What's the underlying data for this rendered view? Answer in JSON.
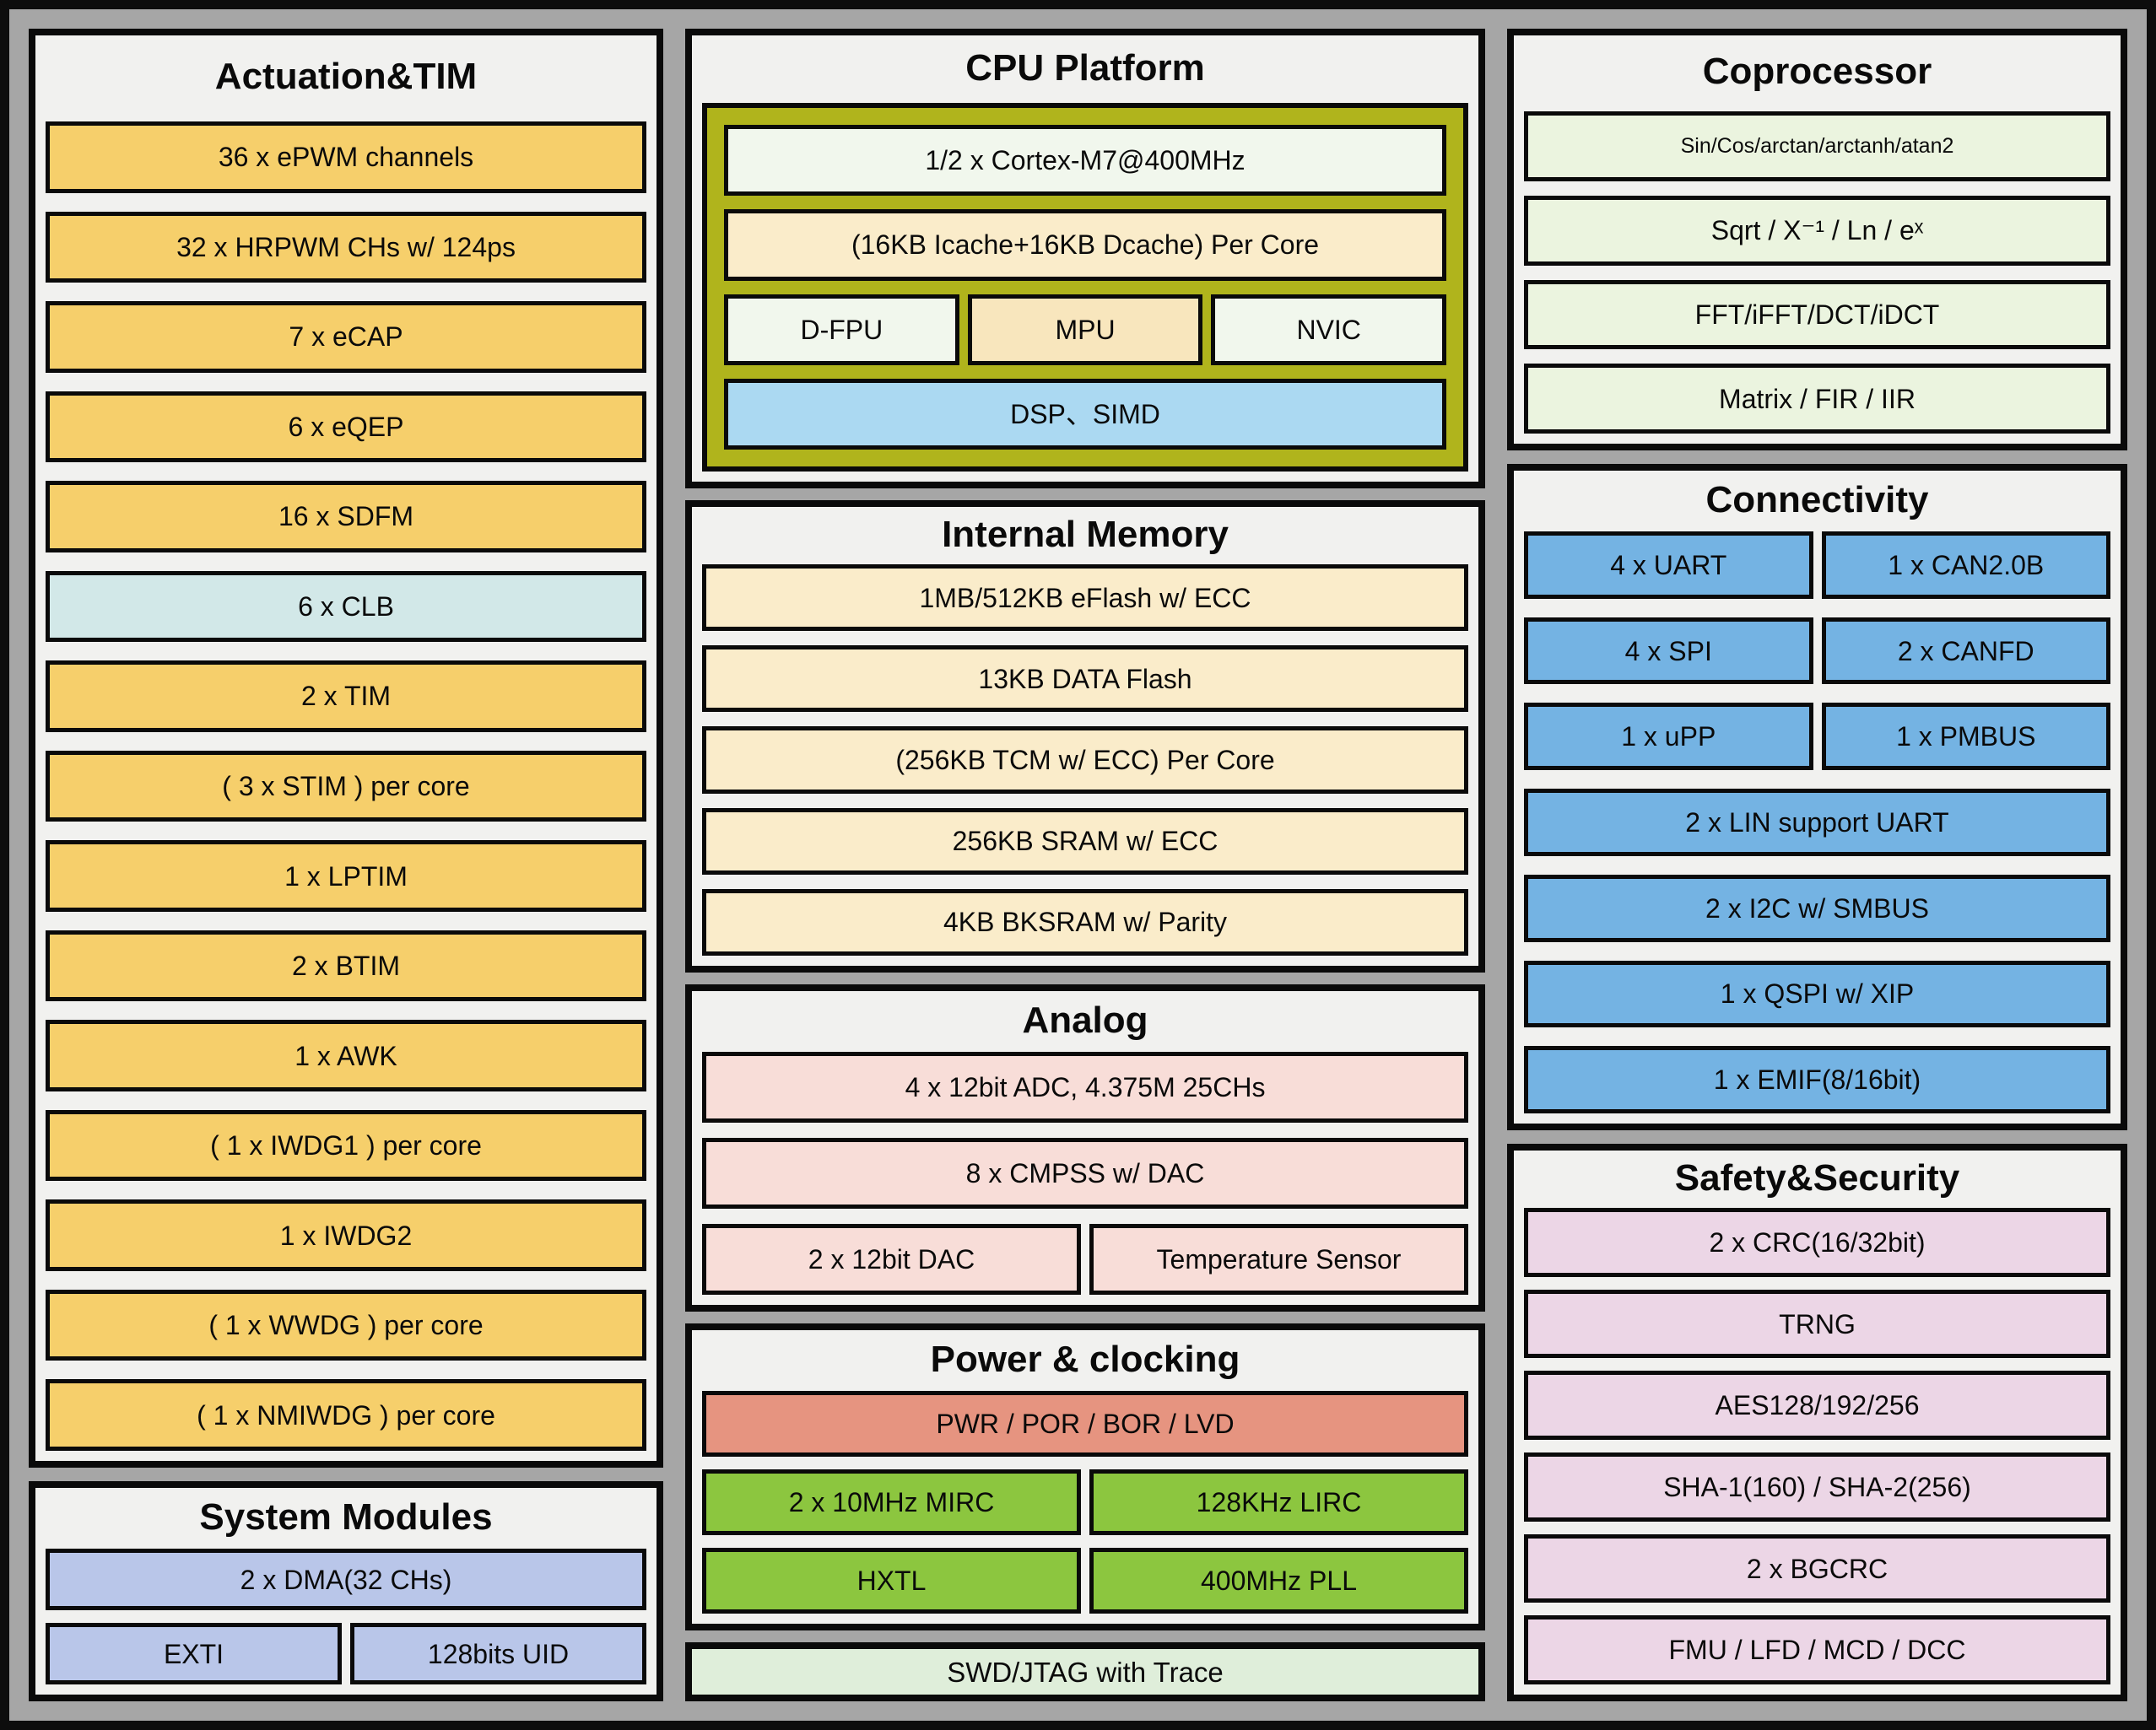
{
  "palette": {
    "frameBlack": "#0d0d0d",
    "outerGray": "#a6a6a6",
    "panelBg": "#f1f1ef",
    "yellow": "#f6cf6b",
    "cyan": "#d2e8e8",
    "periwinkle": "#b9c6e9",
    "olive": "#b0b41c",
    "paleGreen": "#f1f7ed",
    "cream": "#faecca",
    "creamDark": "#f8e6bd",
    "dspBlue": "#abd9f2",
    "pink": "#f8ddd8",
    "salmon": "#e69480",
    "green": "#8cc63f",
    "swdGreen": "#dfeeda",
    "coproGreen": "#ebf4df",
    "connBlue": "#74b3e3",
    "safetyPink": "#ecd6e6"
  },
  "panels": {
    "actuation": {
      "title": "Actuation&TIM",
      "rows": [
        [
          {
            "t": "36 x ePWM channels",
            "c": "yellow"
          }
        ],
        [
          {
            "t": "32 x HRPWM CHs w/ 124ps",
            "c": "yellow"
          }
        ],
        [
          {
            "t": "7 x eCAP",
            "c": "yellow"
          }
        ],
        [
          {
            "t": "6 x eQEP",
            "c": "yellow"
          }
        ],
        [
          {
            "t": "16 x SDFM",
            "c": "yellow"
          }
        ],
        [
          {
            "t": "6 x CLB",
            "c": "cyan"
          }
        ],
        [
          {
            "t": "2 x TIM",
            "c": "yellow"
          }
        ],
        [
          {
            "t": "( 3 x STIM ) per core",
            "c": "yellow"
          }
        ],
        [
          {
            "t": "1 x LPTIM",
            "c": "yellow"
          }
        ],
        [
          {
            "t": "2 x BTIM",
            "c": "yellow"
          }
        ],
        [
          {
            "t": "1 x AWK",
            "c": "yellow"
          }
        ],
        [
          {
            "t": "( 1 x IWDG1 ) per core",
            "c": "yellow"
          }
        ],
        [
          {
            "t": "1 x IWDG2",
            "c": "yellow"
          }
        ],
        [
          {
            "t": "( 1 x WWDG ) per core",
            "c": "yellow"
          }
        ],
        [
          {
            "t": "( 1 x NMIWDG ) per core",
            "c": "yellow"
          }
        ]
      ]
    },
    "system": {
      "title": "System Modules",
      "rows": [
        [
          {
            "t": "2 x DMA(32 CHs)",
            "c": "periwinkle"
          }
        ],
        [
          {
            "t": "EXTI",
            "c": "periwinkle"
          },
          {
            "t": "128bits UID",
            "c": "periwinkle"
          }
        ]
      ]
    },
    "cpu": {
      "title": "CPU Platform",
      "rows": [
        [
          {
            "t": "1/2 x Cortex-M7@400MHz",
            "c": "paleGreen"
          }
        ],
        [
          {
            "t": "(16KB Icache+16KB Dcache) Per Core",
            "c": "cream"
          }
        ],
        [
          {
            "t": "D-FPU",
            "c": "paleGreen"
          },
          {
            "t": "MPU",
            "c": "creamDark"
          },
          {
            "t": "NVIC",
            "c": "paleGreen"
          }
        ],
        [
          {
            "t": "DSP、SIMD",
            "c": "dspBlue"
          }
        ]
      ]
    },
    "memory": {
      "title": "Internal Memory",
      "rows": [
        [
          {
            "t": "1MB/512KB eFlash w/ ECC",
            "c": "cream"
          }
        ],
        [
          {
            "t": "13KB DATA Flash",
            "c": "cream"
          }
        ],
        [
          {
            "t": "(256KB TCM w/ ECC) Per Core",
            "c": "cream"
          }
        ],
        [
          {
            "t": "256KB SRAM w/ ECC",
            "c": "cream"
          }
        ],
        [
          {
            "t": "4KB BKSRAM w/ Parity",
            "c": "cream"
          }
        ]
      ]
    },
    "analog": {
      "title": "Analog",
      "rows": [
        [
          {
            "t": "4 x 12bit ADC, 4.375M 25CHs",
            "c": "pink"
          }
        ],
        [
          {
            "t": "8 x CMPSS w/ DAC",
            "c": "pink"
          }
        ],
        [
          {
            "t": "2 x 12bit DAC",
            "c": "pink"
          },
          {
            "t": "Temperature Sensor",
            "c": "pink"
          }
        ]
      ]
    },
    "power": {
      "title": "Power & clocking",
      "rows": [
        [
          {
            "t": "PWR / POR / BOR / LVD",
            "c": "salmon"
          }
        ],
        [
          {
            "t": "2 x 10MHz MIRC",
            "c": "green"
          },
          {
            "t": "128KHz LIRC",
            "c": "green"
          }
        ],
        [
          {
            "t": "HXTL",
            "c": "green"
          },
          {
            "t": "400MHz PLL",
            "c": "green"
          }
        ]
      ]
    },
    "swd": {
      "rows": [
        [
          {
            "t": "SWD/JTAG with Trace",
            "c": "swdGreen"
          }
        ]
      ]
    },
    "coprocessor": {
      "title": "Coprocessor",
      "rows": [
        [
          {
            "t": "Sin/Cos/arctan/arctanh/atan2",
            "c": "coproGreen"
          }
        ],
        [
          {
            "t": "Sqrt / X⁻¹ / Ln / eˣ",
            "c": "coproGreen"
          }
        ],
        [
          {
            "t": "FFT/iFFT/DCT/iDCT",
            "c": "coproGreen"
          }
        ],
        [
          {
            "t": "Matrix / FIR / IIR",
            "c": "coproGreen"
          }
        ]
      ]
    },
    "connectivity": {
      "title": "Connectivity",
      "rows": [
        [
          {
            "t": "4 x UART",
            "c": "connBlue"
          },
          {
            "t": "1 x CAN2.0B",
            "c": "connBlue"
          }
        ],
        [
          {
            "t": "4 x SPI",
            "c": "connBlue"
          },
          {
            "t": "2 x CANFD",
            "c": "connBlue"
          }
        ],
        [
          {
            "t": "1 x uPP",
            "c": "connBlue"
          },
          {
            "t": "1 x PMBUS",
            "c": "connBlue"
          }
        ],
        [
          {
            "t": "2 x LIN support UART",
            "c": "connBlue"
          }
        ],
        [
          {
            "t": "2 x I2C w/ SMBUS",
            "c": "connBlue"
          }
        ],
        [
          {
            "t": "1 x QSPI w/ XIP",
            "c": "connBlue"
          }
        ],
        [
          {
            "t": "1 x EMIF(8/16bit)",
            "c": "connBlue"
          }
        ]
      ]
    },
    "safety": {
      "title": "Safety&Security",
      "rows": [
        [
          {
            "t": "2 x CRC(16/32bit)",
            "c": "safetyPink"
          }
        ],
        [
          {
            "t": "TRNG",
            "c": "safetyPink"
          }
        ],
        [
          {
            "t": "AES128/192/256",
            "c": "safetyPink"
          }
        ],
        [
          {
            "t": "SHA-1(160) / SHA-2(256)",
            "c": "safetyPink"
          }
        ],
        [
          {
            "t": "2 x BGCRC",
            "c": "safetyPink"
          }
        ],
        [
          {
            "t": "FMU / LFD / MCD / DCC",
            "c": "safetyPink"
          }
        ]
      ]
    }
  }
}
